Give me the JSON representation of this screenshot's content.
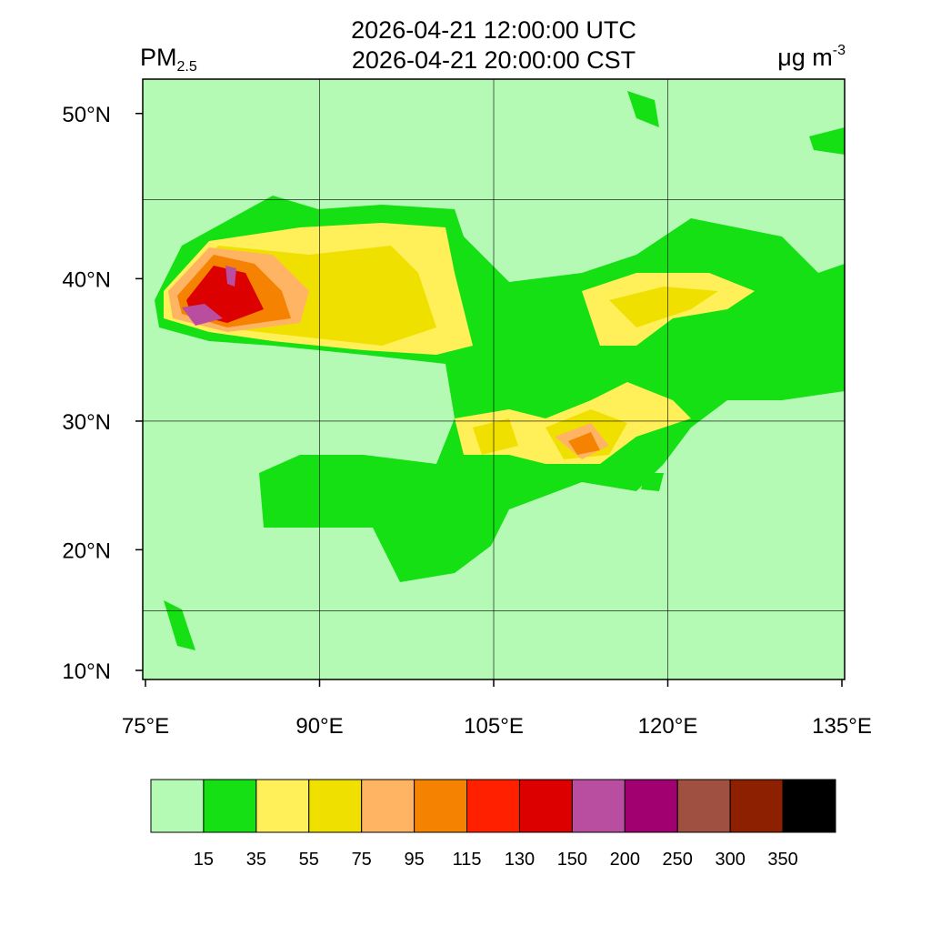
{
  "header": {
    "title_lines": [
      "2026-04-21 12:00:00 UTC",
      "2026-04-21 20:00:00 CST"
    ],
    "variable": "PM",
    "variable_subscript": "2.5",
    "unit": "μg m",
    "unit_superscript": "-3"
  },
  "map": {
    "lon_range": [
      75,
      135
    ],
    "lat_ticks": [
      {
        "value": 50,
        "label": "50°N"
      },
      {
        "value": 40,
        "label": "40°N"
      },
      {
        "value": 30,
        "label": "30°N"
      },
      {
        "value": 20,
        "label": "20°N"
      },
      {
        "value": 10,
        "label": "10°N"
      }
    ],
    "lon_ticks": [
      {
        "value": 75,
        "label": "75°E"
      },
      {
        "value": 90,
        "label": "90°E"
      },
      {
        "value": 105,
        "label": "105°E"
      },
      {
        "value": 120,
        "label": "120°E"
      },
      {
        "value": 135,
        "label": "135°E"
      }
    ],
    "grid_lats": [
      15,
      30,
      45
    ],
    "grid_lons": [
      90,
      105,
      120
    ]
  },
  "colorbar": {
    "levels": [
      15,
      35,
      55,
      75,
      95,
      115,
      130,
      150,
      200,
      250,
      300,
      350
    ],
    "colors": [
      "#b4fab4",
      "#14e014",
      "#fff05a",
      "#f0e000",
      "#ffb464",
      "#f58200",
      "#ff2000",
      "#dc0000",
      "#b94ea0",
      "#a00070",
      "#a05040",
      "#8c2000",
      "#000000"
    ]
  }
}
